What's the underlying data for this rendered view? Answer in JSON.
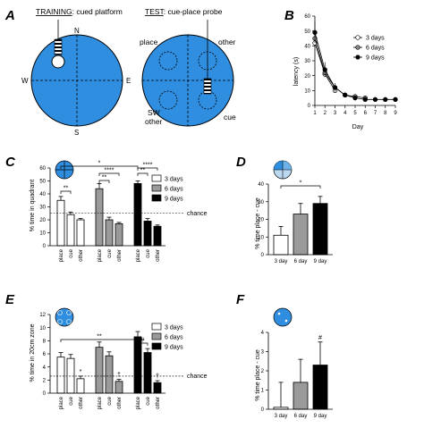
{
  "colors": {
    "pool": "#2f8ee0",
    "gray_bar": "#9a9a9a",
    "black_bar": "#000000",
    "white_bar": "#ffffff"
  },
  "panel_labels": [
    "A",
    "B",
    "C",
    "D",
    "E",
    "F"
  ],
  "panel_a": {
    "training_title_underlined": "TRAINING",
    "training_title_rest": ": cued platform",
    "test_title_underlined": "TEST",
    "test_title_rest": ": cue-place probe",
    "compass": {
      "n": "N",
      "s": "S",
      "w": "W",
      "e": "E"
    },
    "probe_labels": {
      "place": "place",
      "other": "other",
      "sw": "SW",
      "sw_other": "other",
      "cue": "cue"
    }
  },
  "chart_data": [
    {
      "panel": "B",
      "type": "line",
      "ylabel": "latency (s)",
      "xlabel": "Day",
      "x": [
        1,
        2,
        3,
        4,
        5,
        6,
        7,
        8,
        9
      ],
      "xlim": [
        1,
        9
      ],
      "ylim": [
        0,
        60
      ],
      "yticks": [
        0,
        10,
        20,
        30,
        40,
        50,
        60
      ],
      "legend_position": "top-right",
      "series": [
        {
          "name": "3 days",
          "marker": "open-circle",
          "values": [
            42,
            21,
            10,
            null,
            null,
            null,
            null,
            null,
            null
          ]
        },
        {
          "name": "6 days",
          "marker": "gray-circle",
          "values": [
            45,
            22,
            12,
            7,
            6,
            5,
            null,
            null,
            null
          ]
        },
        {
          "name": "9 days",
          "marker": "filled-circle",
          "values": [
            49,
            24,
            12,
            7,
            5,
            4,
            4,
            4,
            4
          ]
        }
      ]
    },
    {
      "panel": "C",
      "type": "bar",
      "ylabel": "% time in quadrant",
      "ylim": [
        0,
        60
      ],
      "yticks": [
        0,
        10,
        20,
        30,
        40,
        50,
        60
      ],
      "categories": [
        "place",
        "cue",
        "other",
        "place",
        "cue",
        "other",
        "place",
        "cue",
        "other"
      ],
      "groups": [
        "3 days",
        "6 days",
        "9 days"
      ],
      "values": [
        35,
        24,
        20,
        44,
        20,
        17,
        48,
        19,
        15
      ],
      "errors": [
        3,
        2,
        1,
        4,
        2,
        1,
        2,
        2,
        1
      ],
      "reference_line": {
        "value": 25,
        "label": "chance"
      },
      "legend": [
        "3 days",
        "6 days",
        "9 days"
      ],
      "legend_position": "top-right",
      "significance": [
        "*",
        "**",
        "**",
        "****",
        "**",
        "****"
      ]
    },
    {
      "panel": "D",
      "type": "bar",
      "ylabel": "% time place - cue",
      "categories": [
        "3 day",
        "6 day",
        "9 day"
      ],
      "values": [
        11,
        23,
        29
      ],
      "errors": [
        5,
        6,
        4
      ],
      "ylim": [
        0,
        40
      ],
      "yticks": [
        0,
        10,
        20,
        30,
        40
      ],
      "significance": [
        "*"
      ]
    },
    {
      "panel": "E",
      "type": "bar",
      "ylabel": "% time in 20cm zone",
      "ylim": [
        0,
        12
      ],
      "yticks": [
        0,
        2,
        4,
        6,
        8,
        10,
        12
      ],
      "categories": [
        "place",
        "cue",
        "other",
        "place",
        "cue",
        "other",
        "place",
        "cue",
        "other"
      ],
      "groups": [
        "3 days",
        "6 days",
        "9 days"
      ],
      "values": [
        5.5,
        5.3,
        2.2,
        7.0,
        5.7,
        1.8,
        8.6,
        6.2,
        1.6
      ],
      "errors": [
        0.7,
        0.6,
        0.4,
        0.8,
        0.6,
        0.3,
        0.8,
        0.6,
        0.3
      ],
      "reference_line": {
        "value": 2.6,
        "label": "chance"
      },
      "legend": [
        "3 days",
        "6 days",
        "9 days"
      ],
      "legend_position": "top-right",
      "significance": [
        "**",
        "#",
        "*",
        "†",
        "†"
      ]
    },
    {
      "panel": "F",
      "type": "bar",
      "ylabel": "% time place - cue",
      "categories": [
        "3 day",
        "6 day",
        "9 day"
      ],
      "values": [
        0.1,
        1.4,
        2.3
      ],
      "errors": [
        1.3,
        1.2,
        1.2
      ],
      "ylim": [
        0,
        4
      ],
      "yticks": [
        0,
        1,
        2,
        3,
        4
      ],
      "significance": [
        "#"
      ]
    }
  ]
}
